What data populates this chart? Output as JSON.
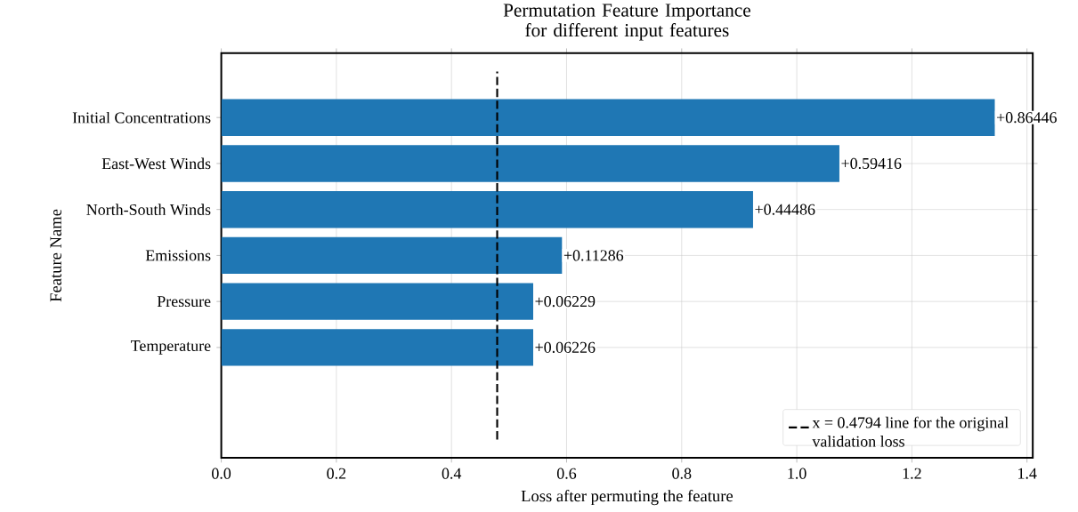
{
  "chart_data": {
    "type": "bar",
    "orientation": "horizontal",
    "title": "Permutation Feature Importance for different input features",
    "xlabel": "Loss after permuting the feature",
    "ylabel": "Feature Name",
    "categories": [
      "Initial Concentrations",
      "East-West Winds",
      "North-South Winds",
      "Emissions",
      "Pressure",
      "Temperature"
    ],
    "values": [
      1.344,
      1.074,
      0.924,
      0.592,
      0.542,
      0.542
    ],
    "annotations": [
      {
        "text": "+0.86446",
        "x": 1.344,
        "y": "Initial Concentrations"
      },
      {
        "text": "+0.59416",
        "x": 1.074,
        "y": "East-West Winds"
      },
      {
        "text": "+0.44486",
        "x": 0.924,
        "y": "North-South Winds"
      },
      {
        "text": "+0.11286",
        "x": 0.592,
        "y": "Emissions"
      },
      {
        "text": "+0.06229",
        "x": 0.542,
        "y": "Pressure"
      },
      {
        "text": "+0.06226",
        "x": 0.542,
        "y": "Temperature"
      }
    ],
    "color": "#1f77b4",
    "xlim": [
      0,
      1.41
    ],
    "xticks": [
      {
        "value": 0,
        "label": "0.0"
      },
      {
        "value": 0.2,
        "label": "0.2"
      },
      {
        "value": 0.4,
        "label": "0.4"
      },
      {
        "value": 0.6,
        "label": "0.6"
      },
      {
        "value": 0.8,
        "label": "0.8"
      },
      {
        "value": 1.0,
        "label": "1.0"
      },
      {
        "value": 1.2,
        "label": "1.2"
      },
      {
        "value": 1.4,
        "label": "1.4"
      }
    ],
    "ref_lines": [
      {
        "axis": "x",
        "value": 0.4794,
        "label": "x = 0.4794 line for the original validation loss",
        "color": "#000000",
        "line_style": "dashed"
      }
    ],
    "grid": true,
    "legend": "bottom right"
  }
}
